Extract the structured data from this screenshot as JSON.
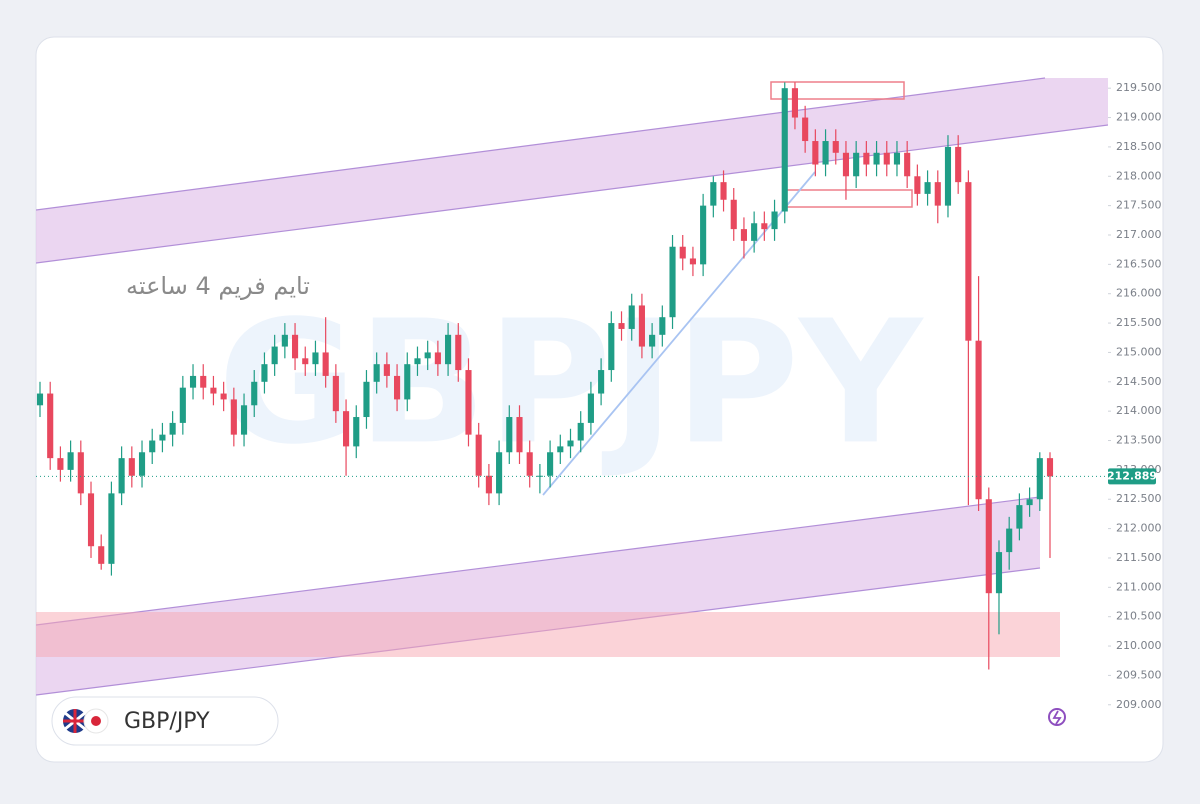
{
  "chart_data": {
    "type": "candlestick",
    "symbol": "GBP/JPY",
    "watermark": "GBPJPY",
    "annotation": "تایم فریم 4 ساعته",
    "up_color": "#1f9d86",
    "down_color": "#e8485e",
    "ylim": [
      208.4,
      219.98
    ],
    "yticks": [
      {
        "value": 209,
        "label": "209.000"
      },
      {
        "value": 209.5,
        "label": "209.500"
      },
      {
        "value": 210,
        "label": "210.000"
      },
      {
        "value": 210.5,
        "label": "210.500"
      },
      {
        "value": 211,
        "label": "211.000"
      },
      {
        "value": 211.5,
        "label": "211.500"
      },
      {
        "value": 212,
        "label": "212.000"
      },
      {
        "value": 212.5,
        "label": "212.500"
      },
      {
        "value": 213,
        "label": "213.000"
      },
      {
        "value": 213.5,
        "label": "213.500"
      },
      {
        "value": 214,
        "label": "214.000"
      },
      {
        "value": 214.5,
        "label": "214.500"
      },
      {
        "value": 215,
        "label": "215.000"
      },
      {
        "value": 215.5,
        "label": "215.500"
      },
      {
        "value": 216,
        "label": "216.000"
      },
      {
        "value": 216.5,
        "label": "216.500"
      },
      {
        "value": 217,
        "label": "217.000"
      },
      {
        "value": 217.5,
        "label": "217.500"
      },
      {
        "value": 218,
        "label": "218.000"
      },
      {
        "value": 218.5,
        "label": "218.500"
      },
      {
        "value": 219,
        "label": "219.000"
      },
      {
        "value": 219.5,
        "label": "219.500"
      }
    ],
    "last_price": {
      "value": 212.889,
      "label": "212.889"
    },
    "open": [
      214.1,
      214.3,
      213.2,
      213.0,
      213.3,
      212.6,
      211.7,
      211.4,
      212.6,
      213.2,
      212.9,
      213.3,
      213.5,
      213.6,
      213.8,
      214.4,
      214.6,
      214.4,
      214.3,
      214.2,
      213.6,
      214.1,
      214.5,
      214.8,
      215.1,
      215.3,
      214.9,
      214.8,
      215.0,
      214.6,
      214.0,
      213.4,
      213.9,
      214.5,
      214.8,
      214.6,
      214.2,
      214.8,
      214.9,
      215.0,
      214.8,
      215.3,
      214.7,
      213.6,
      212.9,
      212.6,
      213.3,
      213.9,
      213.3,
      212.9,
      212.9,
      213.3,
      213.4,
      213.5,
      213.8,
      214.3,
      214.7,
      215.5,
      215.4,
      215.8,
      215.1,
      215.3,
      215.6,
      216.8,
      216.6,
      216.5,
      217.5,
      217.9,
      217.6,
      217.1,
      216.9,
      217.2,
      217.1,
      217.4,
      219.5,
      219.0,
      218.6,
      218.2,
      218.6,
      218.4,
      218.0,
      218.4,
      218.2,
      218.4,
      218.2,
      218.4,
      218.0,
      217.7,
      217.9,
      217.5,
      218.5,
      217.9,
      215.2,
      212.5,
      210.9,
      211.6,
      212.0,
      212.4,
      212.5,
      213.2
    ],
    "close": [
      214.3,
      213.2,
      213.0,
      213.3,
      212.6,
      211.7,
      211.4,
      212.6,
      213.2,
      212.9,
      213.3,
      213.5,
      213.6,
      213.8,
      214.4,
      214.6,
      214.4,
      214.3,
      214.2,
      213.6,
      214.1,
      214.5,
      214.8,
      215.1,
      215.3,
      214.9,
      214.8,
      215.0,
      214.6,
      214.0,
      213.4,
      213.9,
      214.5,
      214.8,
      214.6,
      214.2,
      214.8,
      214.9,
      215.0,
      214.8,
      215.3,
      214.7,
      213.6,
      212.9,
      212.6,
      213.3,
      213.9,
      213.3,
      212.9,
      212.9,
      213.3,
      213.4,
      213.5,
      213.8,
      214.3,
      214.7,
      215.5,
      215.4,
      215.8,
      215.1,
      215.3,
      215.6,
      216.8,
      216.6,
      216.5,
      217.5,
      217.9,
      217.6,
      217.1,
      216.9,
      217.2,
      217.1,
      217.4,
      219.5,
      219.0,
      218.6,
      218.2,
      218.6,
      218.4,
      218.0,
      218.4,
      218.2,
      218.4,
      218.2,
      218.4,
      218.0,
      217.7,
      217.9,
      217.5,
      218.5,
      217.9,
      215.2,
      212.5,
      210.9,
      211.6,
      212.0,
      212.4,
      212.5,
      213.2,
      212.889
    ],
    "high": [
      214.5,
      214.5,
      213.4,
      213.5,
      213.5,
      212.8,
      211.9,
      212.8,
      213.4,
      213.4,
      213.5,
      213.7,
      213.8,
      214.0,
      214.6,
      214.8,
      214.8,
      214.6,
      214.5,
      214.4,
      214.3,
      214.7,
      215.0,
      215.3,
      215.5,
      215.5,
      215.1,
      215.2,
      215.6,
      214.8,
      214.2,
      214.1,
      214.7,
      215.0,
      215.0,
      214.8,
      215.0,
      215.1,
      215.2,
      215.2,
      215.5,
      215.5,
      214.9,
      213.8,
      213.1,
      213.5,
      214.1,
      214.1,
      213.5,
      213.1,
      213.5,
      213.6,
      213.7,
      214.0,
      214.5,
      214.9,
      215.7,
      215.7,
      216.0,
      216.0,
      215.5,
      215.8,
      217.0,
      217.0,
      216.8,
      217.7,
      218.0,
      218.1,
      217.8,
      217.3,
      217.4,
      217.4,
      217.6,
      219.6,
      219.6,
      219.2,
      218.8,
      218.8,
      218.8,
      218.6,
      218.6,
      218.6,
      218.6,
      218.6,
      218.6,
      218.6,
      218.2,
      218.1,
      218.1,
      218.7,
      218.7,
      218.1,
      216.3,
      212.7,
      211.8,
      212.2,
      212.6,
      212.7,
      213.3,
      213.3
    ],
    "low": [
      213.9,
      213.0,
      212.8,
      212.8,
      212.4,
      211.5,
      211.3,
      211.2,
      212.4,
      212.7,
      212.7,
      213.1,
      213.3,
      213.4,
      213.6,
      214.2,
      214.2,
      214.1,
      214.0,
      213.4,
      213.4,
      213.9,
      214.3,
      214.6,
      214.9,
      214.7,
      214.6,
      214.6,
      214.4,
      213.8,
      212.9,
      213.2,
      213.7,
      214.3,
      214.4,
      214.0,
      214.0,
      214.6,
      214.7,
      214.6,
      214.6,
      214.5,
      213.4,
      212.7,
      212.4,
      212.4,
      213.1,
      213.1,
      212.7,
      212.6,
      212.7,
      213.1,
      213.2,
      213.3,
      213.6,
      214.1,
      214.5,
      215.2,
      215.2,
      214.9,
      214.9,
      215.1,
      215.4,
      216.4,
      216.3,
      216.3,
      217.3,
      217.4,
      216.9,
      216.6,
      216.7,
      216.9,
      216.9,
      217.2,
      218.8,
      218.4,
      218.0,
      218.0,
      218.2,
      217.6,
      217.8,
      218.0,
      218.0,
      218.0,
      218.0,
      217.8,
      217.5,
      217.5,
      217.2,
      217.3,
      217.7,
      212.4,
      212.3,
      209.6,
      210.2,
      211.3,
      211.8,
      212.2,
      212.3,
      211.5
    ]
  }
}
